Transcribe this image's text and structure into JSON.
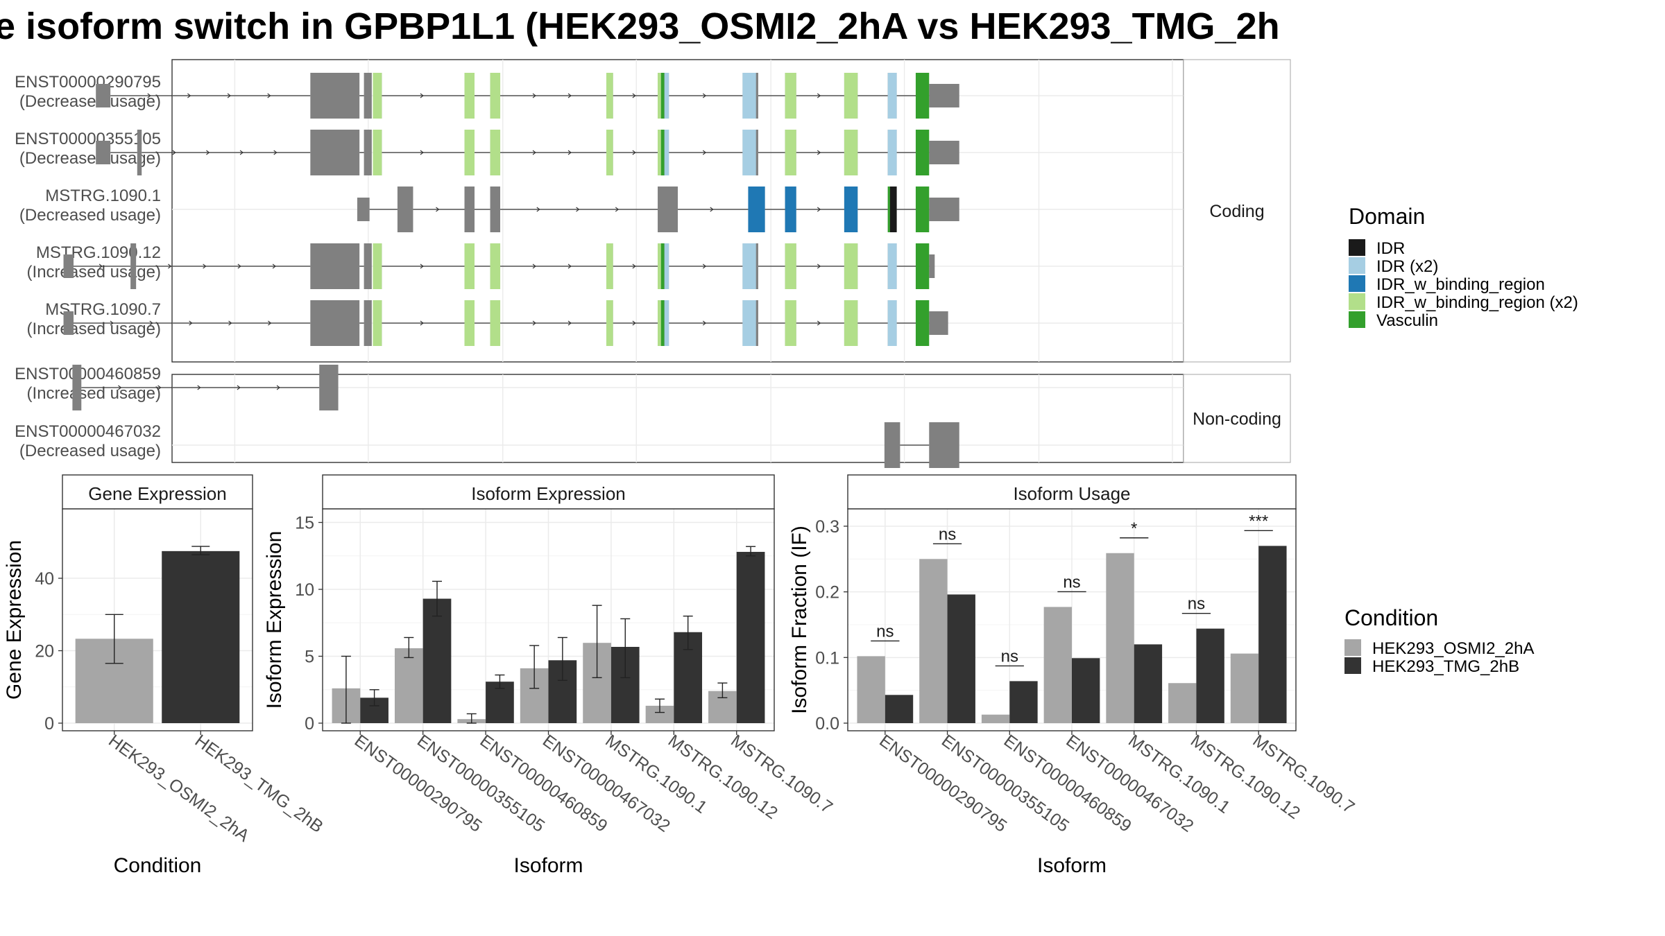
{
  "title": "e isoform switch in GPBP1L1 (HEK293_OSMI2_2hA vs HEK293_TMG_2h",
  "colors": {
    "gray": "#808080",
    "IDR": "#1a1a1a",
    "IDR (x2)": "#a6cee3",
    "IDR_w_binding_region": "#1f78b4",
    "IDR_w_binding_region (x2)": "#b2df8a",
    "Vasculin": "#33a02c",
    "cond1": "#a6a6a6",
    "cond2": "#333333"
  },
  "domain_legend": {
    "title": "Domain",
    "items": [
      "IDR",
      "IDR (x2)",
      "IDR_w_binding_region",
      "IDR_w_binding_region (x2)",
      "Vasculin"
    ]
  },
  "condition_legend": {
    "title": "Condition",
    "items": [
      "HEK293_OSMI2_2hA",
      "HEK293_TMG_2hB"
    ]
  },
  "structure": {
    "genomic_range": [
      0,
      1000
    ],
    "facets": [
      {
        "label": "Coding",
        "transcripts": [
          {
            "id": "ENST00000290795",
            "usage": "(Decreased usage)",
            "exons": [
              [
                61,
                74
              ],
              [
                253,
                297
              ],
              [
                301,
                308
              ],
              [
                309,
                317
              ],
              [
                391,
                400
              ],
              [
                414,
                423
              ],
              [
                518,
                524
              ],
              [
                564,
                574
              ],
              [
                640,
                654
              ],
              [
                678,
                688
              ],
              [
                731,
                743
              ],
              [
                770,
                778
              ],
              [
                807,
                834
              ]
            ],
            "domains": [
              [
                309,
                317,
                "IDR_w_binding_region (x2)"
              ],
              [
                391,
                400,
                "IDR_w_binding_region (x2)"
              ],
              [
                414,
                423,
                "IDR_w_binding_region (x2)"
              ],
              [
                518,
                524,
                "IDR_w_binding_region (x2)"
              ],
              [
                564,
                567,
                "IDR_w_binding_region (x2)"
              ],
              [
                567,
                570,
                "Vasculin"
              ],
              [
                570,
                574,
                "IDR (x2)"
              ],
              [
                640,
                652,
                "IDR (x2)"
              ],
              [
                678,
                688,
                "IDR_w_binding_region (x2)"
              ],
              [
                731,
                743,
                "IDR_w_binding_region (x2)"
              ],
              [
                770,
                778,
                "IDR (x2)"
              ],
              [
                795,
                807,
                "Vasculin"
              ]
            ]
          },
          {
            "id": "ENST00000355105",
            "usage": "(Decreased usage)",
            "exons": [
              [
                61,
                74
              ],
              [
                98,
                102
              ],
              [
                253,
                297
              ],
              [
                301,
                308
              ],
              [
                309,
                317
              ],
              [
                391,
                400
              ],
              [
                414,
                423
              ],
              [
                518,
                524
              ],
              [
                564,
                574
              ],
              [
                640,
                654
              ],
              [
                678,
                688
              ],
              [
                731,
                743
              ],
              [
                770,
                778
              ],
              [
                807,
                834
              ]
            ],
            "domains": [
              [
                309,
                317,
                "IDR_w_binding_region (x2)"
              ],
              [
                391,
                400,
                "IDR_w_binding_region (x2)"
              ],
              [
                414,
                423,
                "IDR_w_binding_region (x2)"
              ],
              [
                518,
                524,
                "IDR_w_binding_region (x2)"
              ],
              [
                564,
                567,
                "IDR_w_binding_region (x2)"
              ],
              [
                567,
                570,
                "Vasculin"
              ],
              [
                570,
                574,
                "IDR (x2)"
              ],
              [
                640,
                652,
                "IDR (x2)"
              ],
              [
                678,
                688,
                "IDR_w_binding_region (x2)"
              ],
              [
                731,
                743,
                "IDR_w_binding_region (x2)"
              ],
              [
                770,
                778,
                "IDR (x2)"
              ],
              [
                795,
                807,
                "Vasculin"
              ]
            ]
          },
          {
            "id": "MSTRG.1090.1",
            "usage": "(Decreased usage)",
            "exons": [
              [
                295,
                306
              ],
              [
                331,
                345
              ],
              [
                391,
                400
              ],
              [
                414,
                423
              ],
              [
                564,
                582
              ],
              [
                645,
                660
              ],
              [
                678,
                688
              ],
              [
                731,
                743
              ],
              [
                770,
                778
              ],
              [
                807,
                834
              ]
            ],
            "domains": [
              [
                645,
                660,
                "IDR_w_binding_region"
              ],
              [
                678,
                688,
                "IDR_w_binding_region"
              ],
              [
                731,
                743,
                "IDR_w_binding_region"
              ],
              [
                770,
                772,
                "Vasculin"
              ],
              [
                772,
                778,
                "IDR"
              ],
              [
                795,
                807,
                "Vasculin"
              ]
            ]
          },
          {
            "id": "MSTRG.1090.12",
            "usage": "(Increased usage)",
            "exons": [
              [
                32,
                41
              ],
              [
                92,
                97
              ],
              [
                253,
                297
              ],
              [
                301,
                308
              ],
              [
                309,
                317
              ],
              [
                391,
                400
              ],
              [
                414,
                423
              ],
              [
                518,
                524
              ],
              [
                564,
                574
              ],
              [
                640,
                654
              ],
              [
                678,
                688
              ],
              [
                731,
                743
              ],
              [
                770,
                778
              ],
              [
                807,
                812
              ]
            ],
            "domains": [
              [
                309,
                317,
                "IDR_w_binding_region (x2)"
              ],
              [
                391,
                400,
                "IDR_w_binding_region (x2)"
              ],
              [
                414,
                423,
                "IDR_w_binding_region (x2)"
              ],
              [
                518,
                524,
                "IDR_w_binding_region (x2)"
              ],
              [
                564,
                567,
                "IDR_w_binding_region (x2)"
              ],
              [
                567,
                570,
                "Vasculin"
              ],
              [
                570,
                574,
                "IDR (x2)"
              ],
              [
                640,
                652,
                "IDR (x2)"
              ],
              [
                678,
                688,
                "IDR_w_binding_region (x2)"
              ],
              [
                731,
                743,
                "IDR_w_binding_region (x2)"
              ],
              [
                770,
                778,
                "IDR (x2)"
              ],
              [
                795,
                807,
                "Vasculin"
              ]
            ]
          },
          {
            "id": "MSTRG.1090.7",
            "usage": "(Increased usage)",
            "exons": [
              [
                32,
                41
              ],
              [
                253,
                297
              ],
              [
                301,
                308
              ],
              [
                309,
                317
              ],
              [
                391,
                400
              ],
              [
                414,
                423
              ],
              [
                518,
                524
              ],
              [
                564,
                574
              ],
              [
                640,
                654
              ],
              [
                678,
                688
              ],
              [
                731,
                743
              ],
              [
                770,
                778
              ],
              [
                807,
                824
              ]
            ],
            "domains": [
              [
                309,
                317,
                "IDR_w_binding_region (x2)"
              ],
              [
                391,
                400,
                "IDR_w_binding_region (x2)"
              ],
              [
                414,
                423,
                "IDR_w_binding_region (x2)"
              ],
              [
                518,
                524,
                "IDR_w_binding_region (x2)"
              ],
              [
                564,
                567,
                "IDR_w_binding_region (x2)"
              ],
              [
                567,
                570,
                "Vasculin"
              ],
              [
                570,
                574,
                "IDR (x2)"
              ],
              [
                640,
                652,
                "IDR (x2)"
              ],
              [
                678,
                688,
                "IDR_w_binding_region (x2)"
              ],
              [
                731,
                743,
                "IDR_w_binding_region (x2)"
              ],
              [
                770,
                778,
                "IDR (x2)"
              ],
              [
                795,
                807,
                "Vasculin"
              ]
            ]
          }
        ]
      },
      {
        "label": "Non-coding",
        "transcripts": [
          {
            "id": "ENST00000460859",
            "usage": "(Increased usage)",
            "exons": [
              [
                40,
                48
              ],
              [
                261,
                278
              ]
            ],
            "domains": []
          },
          {
            "id": "ENST00000467032",
            "usage": "(Decreased usage)",
            "exons": [
              [
                767,
                781
              ],
              [
                807,
                834
              ]
            ],
            "domains": []
          }
        ]
      }
    ]
  },
  "chart_data": [
    {
      "type": "bar",
      "title": "Gene Expression",
      "xlabel": "Condition",
      "ylabel": "Gene Expression",
      "ylim": [
        0,
        58
      ],
      "yticks": [
        0,
        20,
        40
      ],
      "categories": [
        "HEK293_OSMI2_2hA",
        "HEK293_TMG_2hB"
      ],
      "values": [
        23.3,
        47.5
      ],
      "error_low": [
        16.5,
        46.5
      ],
      "error_high": [
        30.0,
        48.8
      ]
    },
    {
      "type": "bar",
      "title": "Isoform Expression",
      "xlabel": "Isoform",
      "ylabel": "Isoform Expression",
      "ylim": [
        0,
        15.7
      ],
      "yticks": [
        0,
        5,
        10,
        15
      ],
      "categories": [
        "ENST00000290795",
        "ENST00000355105",
        "ENST00000460859",
        "ENST00000467032",
        "MSTRG.1090.1",
        "MSTRG.1090.12",
        "MSTRG.1090.7"
      ],
      "series": [
        {
          "name": "HEK293_OSMI2_2hA",
          "values": [
            2.6,
            5.6,
            0.3,
            4.1,
            6.0,
            1.3,
            2.4
          ],
          "error_low": [
            0.0,
            4.9,
            0.0,
            2.6,
            3.4,
            0.8,
            1.9
          ],
          "error_high": [
            5.0,
            6.4,
            0.7,
            5.8,
            8.8,
            1.8,
            3.0
          ]
        },
        {
          "name": "HEK293_TMG_2hB",
          "values": [
            1.9,
            9.3,
            3.1,
            4.7,
            5.7,
            6.8,
            12.8
          ],
          "error_low": [
            1.3,
            8.0,
            2.6,
            3.2,
            3.4,
            5.5,
            12.5
          ],
          "error_high": [
            2.5,
            10.6,
            3.6,
            6.4,
            7.8,
            8.0,
            13.2
          ]
        }
      ]
    },
    {
      "type": "bar",
      "title": "Isoform Usage",
      "xlabel": "Isoform",
      "ylabel": "Isoform Fraction (IF)",
      "ylim": [
        0,
        0.32
      ],
      "yticks": [
        "0.0",
        "0.1",
        "0.2",
        "0.3"
      ],
      "categories": [
        "ENST00000290795",
        "ENST00000355105",
        "ENST00000460859",
        "ENST00000467032",
        "MSTRG.1090.1",
        "MSTRG.1090.12",
        "MSTRG.1090.7"
      ],
      "series": [
        {
          "name": "HEK293_OSMI2_2hA",
          "values": [
            0.102,
            0.25,
            0.013,
            0.177,
            0.259,
            0.061,
            0.106
          ]
        },
        {
          "name": "HEK293_TMG_2hB",
          "values": [
            0.043,
            0.196,
            0.064,
            0.099,
            0.12,
            0.144,
            0.27
          ]
        }
      ],
      "significance": [
        "ns",
        "ns",
        "ns",
        "ns",
        "*",
        "ns",
        "***"
      ]
    }
  ]
}
